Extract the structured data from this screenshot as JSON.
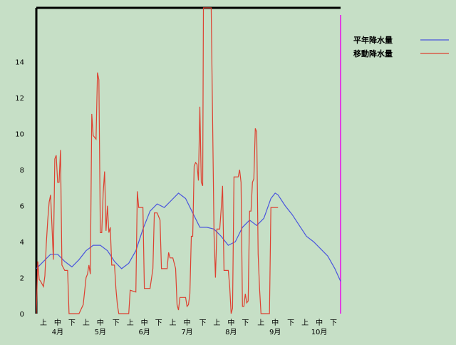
{
  "chart_data": {
    "type": "line",
    "title": "",
    "xlabel": "",
    "ylabel": "",
    "ylim": [
      0,
      17
    ],
    "yticks": [
      0,
      2,
      4,
      6,
      8,
      10,
      12,
      14
    ],
    "x_range": [
      0,
      214
    ],
    "x_ticks": [
      {
        "day": 5,
        "label": "上"
      },
      {
        "day": 15,
        "label": "中"
      },
      {
        "day": 25,
        "label": "下"
      },
      {
        "day": 35,
        "label": "上"
      },
      {
        "day": 45,
        "label": "中"
      },
      {
        "day": 56,
        "label": "下"
      },
      {
        "day": 66,
        "label": "上"
      },
      {
        "day": 76,
        "label": "中"
      },
      {
        "day": 86,
        "label": "下"
      },
      {
        "day": 96,
        "label": "上"
      },
      {
        "day": 106,
        "label": "中"
      },
      {
        "day": 117,
        "label": "下"
      },
      {
        "day": 127,
        "label": "上"
      },
      {
        "day": 137,
        "label": "中"
      },
      {
        "day": 147,
        "label": "下"
      },
      {
        "day": 158,
        "label": "上"
      },
      {
        "day": 168,
        "label": "中"
      },
      {
        "day": 179,
        "label": "下"
      },
      {
        "day": 189,
        "label": "上"
      },
      {
        "day": 199,
        "label": "中"
      },
      {
        "day": 209,
        "label": "下"
      }
    ],
    "months": [
      {
        "day": 15,
        "label": "4月"
      },
      {
        "day": 45,
        "label": "5月"
      },
      {
        "day": 76,
        "label": "6月"
      },
      {
        "day": 106,
        "label": "7月"
      },
      {
        "day": 137,
        "label": "8月"
      },
      {
        "day": 168,
        "label": "9月"
      },
      {
        "day": 199,
        "label": "10月"
      }
    ],
    "legend_position": "top-right",
    "series": [
      {
        "name": "平年降水量",
        "color": "#4a55dd",
        "points": [
          [
            0,
            2.5
          ],
          [
            5,
            2.9
          ],
          [
            10,
            3.3
          ],
          [
            15,
            3.3
          ],
          [
            20,
            2.9
          ],
          [
            25,
            2.6
          ],
          [
            30,
            3.0
          ],
          [
            35,
            3.5
          ],
          [
            40,
            3.8
          ],
          [
            45,
            3.8
          ],
          [
            50,
            3.5
          ],
          [
            55,
            2.9
          ],
          [
            60,
            2.5
          ],
          [
            65,
            2.8
          ],
          [
            70,
            3.5
          ],
          [
            75,
            4.7
          ],
          [
            80,
            5.7
          ],
          [
            85,
            6.1
          ],
          [
            90,
            5.9
          ],
          [
            95,
            6.3
          ],
          [
            100,
            6.7
          ],
          [
            105,
            6.4
          ],
          [
            110,
            5.6
          ],
          [
            115,
            4.8
          ],
          [
            120,
            4.8
          ],
          [
            125,
            4.7
          ],
          [
            130,
            4.3
          ],
          [
            135,
            3.8
          ],
          [
            140,
            4.0
          ],
          [
            145,
            4.8
          ],
          [
            150,
            5.2
          ],
          [
            155,
            4.9
          ],
          [
            160,
            5.3
          ],
          [
            165,
            6.4
          ],
          [
            168,
            6.7
          ],
          [
            170,
            6.6
          ],
          [
            175,
            6.0
          ],
          [
            180,
            5.5
          ],
          [
            185,
            4.9
          ],
          [
            190,
            4.3
          ],
          [
            195,
            4.0
          ],
          [
            200,
            3.6
          ],
          [
            205,
            3.2
          ],
          [
            210,
            2.5
          ],
          [
            214,
            1.8
          ]
        ]
      },
      {
        "name": "移動降水量",
        "color": "#dd4030",
        "points": [
          [
            0,
            0
          ],
          [
            1,
            2.9
          ],
          [
            2,
            1.9
          ],
          [
            3,
            1.8
          ],
          [
            5,
            1.5
          ],
          [
            6,
            2.1
          ],
          [
            7,
            3.9
          ],
          [
            8,
            5.2
          ],
          [
            9,
            6.2
          ],
          [
            10,
            6.6
          ],
          [
            11,
            4.9
          ],
          [
            12,
            3.0
          ],
          [
            13,
            8.6
          ],
          [
            14,
            8.8
          ],
          [
            15,
            7.3
          ],
          [
            16,
            7.3
          ],
          [
            17,
            9.1
          ],
          [
            18,
            2.7
          ],
          [
            20,
            2.4
          ],
          [
            22,
            2.4
          ],
          [
            23,
            0
          ],
          [
            26,
            0
          ],
          [
            30,
            0
          ],
          [
            33,
            0.5
          ],
          [
            35,
            2.0
          ],
          [
            36,
            2.2
          ],
          [
            37,
            2.7
          ],
          [
            38,
            2.2
          ],
          [
            39,
            11.1
          ],
          [
            40,
            9.9
          ],
          [
            42,
            9.7
          ],
          [
            43,
            13.4
          ],
          [
            44,
            13.0
          ],
          [
            45,
            4.5
          ],
          [
            46,
            4.5
          ],
          [
            47,
            6.7
          ],
          [
            48,
            7.9
          ],
          [
            49,
            4.6
          ],
          [
            50,
            6.0
          ],
          [
            51,
            4.5
          ],
          [
            52,
            4.8
          ],
          [
            53,
            2.7
          ],
          [
            55,
            2.7
          ],
          [
            56,
            1.4
          ],
          [
            57,
            0.5
          ],
          [
            58,
            0
          ],
          [
            62,
            0
          ],
          [
            65,
            0
          ],
          [
            66,
            1.3
          ],
          [
            70,
            1.2
          ],
          [
            71,
            6.8
          ],
          [
            72,
            5.9
          ],
          [
            75,
            5.9
          ],
          [
            76,
            1.4
          ],
          [
            80,
            1.4
          ],
          [
            82,
            2.5
          ],
          [
            83,
            5.6
          ],
          [
            85,
            5.6
          ],
          [
            87,
            5.2
          ],
          [
            88,
            2.5
          ],
          [
            92,
            2.5
          ],
          [
            93,
            3.4
          ],
          [
            94,
            3.1
          ],
          [
            96,
            3.1
          ],
          [
            98,
            2.5
          ],
          [
            99,
            0.5
          ],
          [
            100,
            0.2
          ],
          [
            101,
            0.9
          ],
          [
            105,
            0.9
          ],
          [
            106,
            0.4
          ],
          [
            107,
            0.5
          ],
          [
            108,
            1.1
          ],
          [
            109,
            4.3
          ],
          [
            110,
            4.3
          ],
          [
            111,
            8.2
          ],
          [
            112,
            8.4
          ],
          [
            113,
            8.3
          ],
          [
            114,
            7.4
          ],
          [
            115,
            11.5
          ],
          [
            116,
            7.3
          ],
          [
            117,
            7.1
          ],
          [
            117.5,
            17
          ],
          [
            123,
            17
          ],
          [
            124,
            10.8
          ],
          [
            125,
            4.4
          ],
          [
            126,
            2.0
          ],
          [
            127,
            4.7
          ],
          [
            129,
            4.7
          ],
          [
            130,
            5.8
          ],
          [
            131,
            7.1
          ],
          [
            132,
            2.4
          ],
          [
            135,
            2.4
          ],
          [
            136,
            1.5
          ],
          [
            137,
            0
          ],
          [
            138,
            0.3
          ],
          [
            139,
            7.6
          ],
          [
            142,
            7.6
          ],
          [
            143,
            8.0
          ],
          [
            144,
            7.3
          ],
          [
            145,
            0.4
          ],
          [
            146,
            0.4
          ],
          [
            147,
            1.1
          ],
          [
            148,
            0.6
          ],
          [
            149,
            0.7
          ],
          [
            150,
            5.7
          ],
          [
            151,
            5.7
          ],
          [
            152,
            7.3
          ],
          [
            153,
            7.5
          ],
          [
            154,
            10.3
          ],
          [
            155,
            10.1
          ],
          [
            156,
            3.3
          ],
          [
            157,
            1.4
          ],
          [
            158,
            0
          ],
          [
            164,
            0
          ],
          [
            165,
            5.9
          ],
          [
            170,
            5.9
          ]
        ]
      }
    ]
  }
}
